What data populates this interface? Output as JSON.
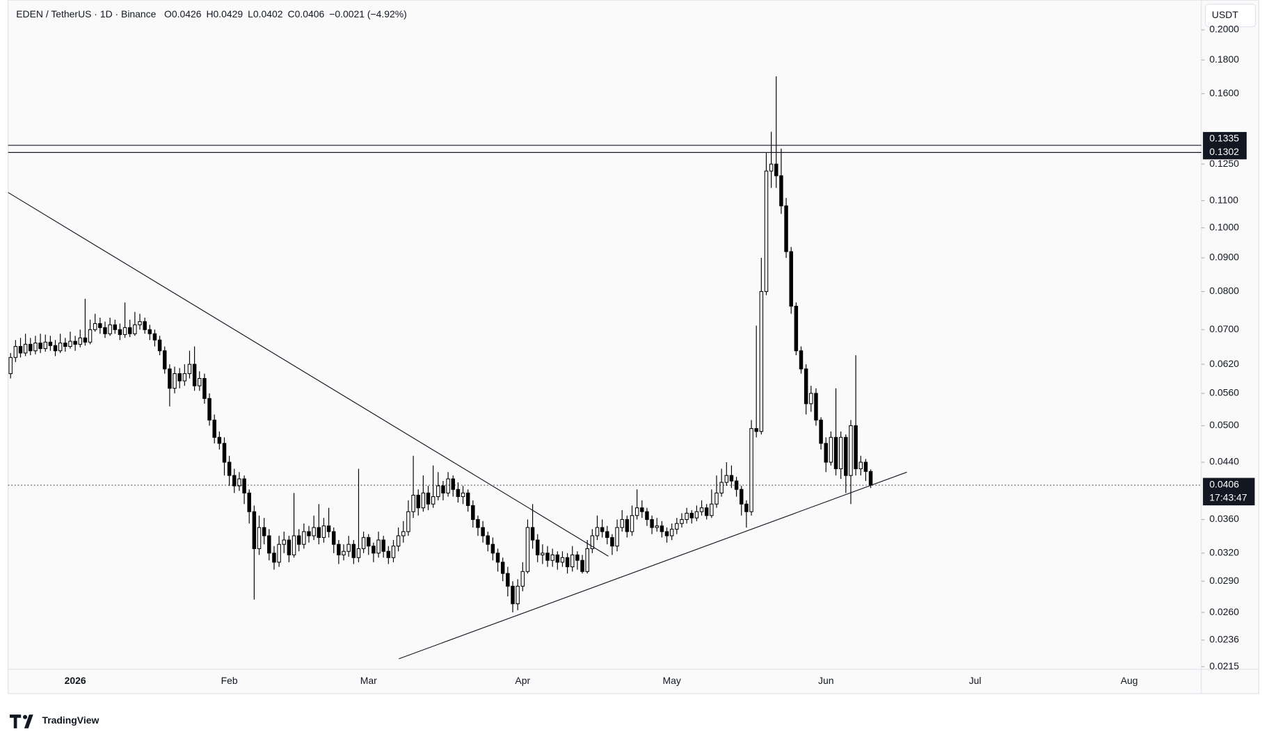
{
  "header": {
    "symbol": "EDEN / TetherUS · 1D · Binance",
    "open": "O0.0426",
    "high": "H0.0429",
    "low": "L0.0402",
    "close": "C0.0406",
    "change": "−0.0021 (−4.92%)"
  },
  "currency": "USDT",
  "brand": "TradingView",
  "chart_data": {
    "type": "candlestick",
    "log_scale": true,
    "grid": false,
    "up_color": "#ffffff",
    "down_color": "#000000",
    "ylim": [
      0.0213,
      0.222
    ],
    "yticks": [
      {
        "value": 0.2,
        "label": "0.2000"
      },
      {
        "value": 0.18,
        "label": "0.1800"
      },
      {
        "value": 0.16,
        "label": "0.1600"
      },
      {
        "value": 0.125,
        "label": "0.1250"
      },
      {
        "value": 0.11,
        "label": "0.1100"
      },
      {
        "value": 0.1,
        "label": "0.1000"
      },
      {
        "value": 0.09,
        "label": "0.0900"
      },
      {
        "value": 0.08,
        "label": "0.0800"
      },
      {
        "value": 0.07,
        "label": "0.0700"
      },
      {
        "value": 0.062,
        "label": "0.0620"
      },
      {
        "value": 0.056,
        "label": "0.0560"
      },
      {
        "value": 0.05,
        "label": "0.0500"
      },
      {
        "value": 0.044,
        "label": "0.0440"
      },
      {
        "value": 0.036,
        "label": "0.0360"
      },
      {
        "value": 0.032,
        "label": "0.0320"
      },
      {
        "value": 0.029,
        "label": "0.0290"
      },
      {
        "value": 0.026,
        "label": "0.0260"
      },
      {
        "value": 0.0236,
        "label": "0.0236"
      },
      {
        "value": 0.0215,
        "label": "0.0215"
      }
    ],
    "hlines": [
      0.1335,
      0.1302
    ],
    "countdown": "17:43:47",
    "categories": [
      null,
      null,
      null,
      null,
      null,
      null,
      null,
      null,
      null,
      null,
      null,
      null,
      null,
      "2026",
      null,
      null,
      null,
      null,
      null,
      null,
      null,
      null,
      null,
      null,
      null,
      null,
      null,
      null,
      null,
      null,
      null,
      null,
      null,
      null,
      null,
      null,
      null,
      null,
      null,
      null,
      null,
      null,
      null,
      null,
      "Feb",
      null,
      null,
      null,
      null,
      null,
      null,
      null,
      null,
      null,
      null,
      null,
      null,
      null,
      null,
      null,
      null,
      null,
      null,
      null,
      null,
      null,
      null,
      null,
      null,
      null,
      null,
      null,
      "Mar",
      null,
      null,
      null,
      null,
      null,
      null,
      null,
      null,
      null,
      null,
      null,
      null,
      null,
      null,
      null,
      null,
      null,
      null,
      null,
      null,
      null,
      null,
      null,
      null,
      null,
      null,
      null,
      null,
      null,
      null,
      "Apr",
      null,
      null,
      null,
      null,
      null,
      null,
      null,
      null,
      null,
      null,
      null,
      null,
      null,
      null,
      null,
      null,
      null,
      null,
      null,
      null,
      null,
      null,
      null,
      null,
      null,
      null,
      null,
      null,
      null,
      "May",
      null,
      null,
      null,
      null,
      null,
      null,
      null,
      null,
      null,
      null,
      null,
      null,
      null,
      null,
      null,
      null,
      null,
      null,
      null,
      null,
      null,
      null,
      null,
      null,
      null,
      null,
      null,
      null,
      null,
      null,
      "Jun",
      null,
      null,
      null,
      null,
      null,
      null,
      null,
      null,
      null,
      null,
      null,
      null,
      null,
      null,
      null,
      null,
      null,
      null,
      null,
      null,
      null,
      null,
      null,
      null,
      null,
      null,
      null,
      null,
      null,
      "Jul",
      null,
      null,
      null,
      null,
      null,
      null,
      null,
      null,
      null,
      null,
      null,
      null,
      null,
      null,
      null,
      null,
      null,
      null,
      null,
      null,
      null,
      null,
      null,
      null,
      null,
      null,
      null,
      null,
      null,
      null,
      "Aug",
      null,
      null,
      null,
      null,
      null,
      null,
      null,
      null,
      null,
      null,
      null,
      null,
      null,
      null
    ],
    "open": [
      0.06,
      0.0635,
      0.066,
      0.0645,
      0.0665,
      0.065,
      0.0668,
      0.0655,
      0.067,
      0.0662,
      0.065,
      0.0668,
      0.066,
      0.0672,
      0.0665,
      0.068,
      0.067,
      0.07,
      0.0715,
      0.0705,
      0.069,
      0.0712,
      0.07,
      0.0688,
      0.0705,
      0.069,
      0.0712,
      0.072,
      0.07,
      0.069,
      0.0675,
      0.065,
      0.061,
      0.057,
      0.06,
      0.0585,
      0.06,
      0.062,
      0.0575,
      0.059,
      0.055,
      0.051,
      0.048,
      0.047,
      0.044,
      0.042,
      0.0405,
      0.0415,
      0.0395,
      0.037,
      0.0325,
      0.035,
      0.034,
      0.032,
      0.031,
      0.033,
      0.0335,
      0.0318,
      0.034,
      0.033,
      0.0345,
      0.034,
      0.035,
      0.0338,
      0.0352,
      0.0345,
      0.033,
      0.0318,
      0.0322,
      0.033,
      0.0315,
      0.0325,
      0.0338,
      0.0328,
      0.032,
      0.0335,
      0.0322,
      0.0315,
      0.0328,
      0.034,
      0.0345,
      0.037,
      0.0392,
      0.0375,
      0.0395,
      0.038,
      0.039,
      0.0405,
      0.0395,
      0.0415,
      0.04,
      0.039,
      0.0395,
      0.0378,
      0.036,
      0.035,
      0.034,
      0.033,
      0.032,
      0.031,
      0.0298,
      0.0285,
      0.0268,
      0.0285,
      0.03,
      0.035,
      0.0335,
      0.0318,
      0.032,
      0.0312,
      0.0318,
      0.031,
      0.0315,
      0.0305,
      0.0318,
      0.0312,
      0.03,
      0.0325,
      0.034,
      0.035,
      0.0345,
      0.0338,
      0.0328,
      0.035,
      0.036,
      0.0345,
      0.0365,
      0.0375,
      0.037,
      0.036,
      0.035,
      0.0352,
      0.0345,
      0.034,
      0.0348,
      0.0355,
      0.036,
      0.0368,
      0.0362,
      0.037,
      0.0375,
      0.0365,
      0.038,
      0.0395,
      0.041,
      0.042,
      0.0412,
      0.04,
      0.038,
      0.037,
      0.0495,
      0.049,
      0.08,
      0.122,
      0.125,
      0.12,
      0.108,
      0.092,
      0.076,
      0.065,
      0.061,
      0.054,
      0.056,
      0.051,
      0.047,
      0.044,
      0.048,
      0.043,
      0.048,
      0.042,
      0.05,
      0.043,
      0.044,
      0.0426,
      null,
      null,
      null,
      null,
      null,
      null,
      null,
      null,
      null,
      null,
      null,
      null,
      null,
      null,
      null,
      null,
      null,
      null,
      null,
      null,
      null,
      null,
      null,
      null,
      null,
      null,
      null,
      null,
      null,
      null,
      null,
      null,
      null,
      null,
      null,
      null,
      null,
      null,
      null,
      null,
      null,
      null,
      null,
      null,
      null,
      null,
      null,
      null,
      null,
      null,
      null,
      null,
      null,
      null,
      null,
      null,
      null,
      null,
      null,
      null,
      null,
      null,
      null,
      null,
      null,
      null
    ],
    "high": [
      0.0645,
      0.0675,
      0.068,
      0.069,
      0.068,
      0.0685,
      0.069,
      0.0688,
      0.0685,
      0.0675,
      0.069,
      0.068,
      0.0695,
      0.0685,
      0.07,
      0.078,
      0.0725,
      0.074,
      0.073,
      0.072,
      0.073,
      0.0725,
      0.0715,
      0.077,
      0.0725,
      0.0745,
      0.074,
      0.073,
      0.0712,
      0.07,
      0.0685,
      0.066,
      0.062,
      0.0615,
      0.0612,
      0.062,
      0.065,
      0.066,
      0.0605,
      0.06,
      0.056,
      0.052,
      0.049,
      0.048,
      0.045,
      0.043,
      0.0425,
      0.042,
      0.04,
      0.0378,
      0.0365,
      0.0362,
      0.0348,
      0.0328,
      0.034,
      0.0345,
      0.034,
      0.0395,
      0.0348,
      0.0355,
      0.0352,
      0.0365,
      0.038,
      0.0362,
      0.0375,
      0.035,
      0.0335,
      0.033,
      0.034,
      0.0335,
      0.043,
      0.0345,
      0.0342,
      0.0332,
      0.0345,
      0.034,
      0.0328,
      0.0335,
      0.035,
      0.0358,
      0.0385,
      0.045,
      0.04,
      0.042,
      0.0405,
      0.0435,
      0.0425,
      0.0412,
      0.0425,
      0.042,
      0.041,
      0.0405,
      0.04,
      0.0385,
      0.0365,
      0.0358,
      0.0345,
      0.0338,
      0.0325,
      0.0315,
      0.0305,
      0.029,
      0.0292,
      0.031,
      0.036,
      0.038,
      0.0342,
      0.033,
      0.0328,
      0.0325,
      0.0322,
      0.0322,
      0.032,
      0.0328,
      0.0322,
      0.0318,
      0.0335,
      0.0348,
      0.0365,
      0.036,
      0.0352,
      0.0342,
      0.036,
      0.0372,
      0.0365,
      0.0378,
      0.04,
      0.0385,
      0.0375,
      0.0365,
      0.0362,
      0.0358,
      0.035,
      0.0355,
      0.0362,
      0.0368,
      0.0375,
      0.0372,
      0.0378,
      0.0385,
      0.038,
      0.04,
      0.042,
      0.043,
      0.044,
      0.0435,
      0.0418,
      0.0405,
      0.0385,
      0.051,
      0.071,
      0.09,
      0.13,
      0.14,
      0.17,
      0.132,
      0.111,
      0.0935,
      0.077,
      0.066,
      0.062,
      0.0575,
      0.057,
      0.0515,
      0.048,
      0.049,
      0.057,
      0.049,
      0.0485,
      0.051,
      0.064,
      0.045,
      0.0445,
      0.0429,
      null,
      null,
      null,
      null,
      null,
      null,
      null,
      null,
      null,
      null,
      null,
      null,
      null,
      null,
      null,
      null,
      null,
      null,
      null,
      null,
      null,
      null,
      null,
      null,
      null,
      null,
      null,
      null,
      null,
      null,
      null,
      null,
      null,
      null,
      null,
      null,
      null,
      null,
      null,
      null,
      null,
      null,
      null,
      null,
      null,
      null,
      null,
      null,
      null,
      null,
      null,
      null,
      null,
      null,
      null,
      null,
      null,
      null,
      null,
      null,
      null,
      null,
      null,
      null,
      null,
      null
    ],
    "low": [
      0.059,
      0.0625,
      0.0635,
      0.0638,
      0.064,
      0.0642,
      0.0645,
      0.0648,
      0.065,
      0.0638,
      0.0645,
      0.0648,
      0.0655,
      0.065,
      0.0658,
      0.0662,
      0.0665,
      0.0695,
      0.069,
      0.068,
      0.0685,
      0.069,
      0.0675,
      0.068,
      0.0682,
      0.0685,
      0.07,
      0.069,
      0.0675,
      0.066,
      0.064,
      0.06,
      0.0535,
      0.056,
      0.057,
      0.0575,
      0.059,
      0.0565,
      0.0565,
      0.054,
      0.05,
      0.047,
      0.046,
      0.042,
      0.0405,
      0.0395,
      0.0398,
      0.038,
      0.0355,
      0.0272,
      0.0318,
      0.033,
      0.0312,
      0.0302,
      0.0305,
      0.032,
      0.031,
      0.0315,
      0.0322,
      0.0325,
      0.0332,
      0.0335,
      0.033,
      0.0332,
      0.0338,
      0.032,
      0.0308,
      0.0312,
      0.0316,
      0.0308,
      0.031,
      0.032,
      0.0318,
      0.031,
      0.0315,
      0.0315,
      0.0308,
      0.031,
      0.0322,
      0.0332,
      0.034,
      0.0362,
      0.0365,
      0.037,
      0.0372,
      0.0375,
      0.0385,
      0.0385,
      0.039,
      0.039,
      0.0382,
      0.038,
      0.037,
      0.035,
      0.034,
      0.0332,
      0.0322,
      0.0312,
      0.03,
      0.029,
      0.0275,
      0.026,
      0.0262,
      0.028,
      0.0298,
      0.0325,
      0.031,
      0.0308,
      0.0305,
      0.0305,
      0.0302,
      0.0305,
      0.0298,
      0.03,
      0.0302,
      0.0298,
      0.0298,
      0.032,
      0.0335,
      0.0338,
      0.033,
      0.0318,
      0.0322,
      0.0345,
      0.0338,
      0.034,
      0.036,
      0.0362,
      0.0352,
      0.0342,
      0.0345,
      0.0338,
      0.0332,
      0.0335,
      0.0342,
      0.035,
      0.0355,
      0.0355,
      0.0358,
      0.0365,
      0.036,
      0.0362,
      0.0375,
      0.039,
      0.0405,
      0.0402,
      0.039,
      0.0365,
      0.035,
      0.0365,
      0.048,
      0.0485,
      0.079,
      0.115,
      0.115,
      0.105,
      0.09,
      0.074,
      0.064,
      0.06,
      0.052,
      0.0525,
      0.05,
      0.046,
      0.0425,
      0.0435,
      0.042,
      0.0415,
      0.0395,
      0.038,
      0.042,
      0.042,
      0.0412,
      0.0402,
      null,
      null,
      null,
      null,
      null,
      null,
      null,
      null,
      null,
      null,
      null,
      null,
      null,
      null,
      null,
      null,
      null,
      null,
      null,
      null,
      null,
      null,
      null,
      null,
      null,
      null,
      null,
      null,
      null,
      null,
      null,
      null,
      null,
      null,
      null,
      null,
      null,
      null,
      null,
      null,
      null,
      null,
      null,
      null,
      null,
      null,
      null,
      null,
      null,
      null,
      null,
      null,
      null,
      null,
      null,
      null,
      null,
      null,
      null,
      null,
      null,
      null,
      null,
      null,
      null,
      null
    ],
    "close": [
      0.0635,
      0.066,
      0.0645,
      0.0665,
      0.065,
      0.0668,
      0.0655,
      0.067,
      0.0662,
      0.065,
      0.0668,
      0.066,
      0.0672,
      0.0665,
      0.068,
      0.067,
      0.07,
      0.0715,
      0.0705,
      0.069,
      0.0712,
      0.07,
      0.0688,
      0.0705,
      0.069,
      0.0712,
      0.072,
      0.07,
      0.069,
      0.0675,
      0.065,
      0.061,
      0.057,
      0.06,
      0.0585,
      0.06,
      0.062,
      0.0575,
      0.059,
      0.055,
      0.051,
      0.048,
      0.047,
      0.044,
      0.042,
      0.0405,
      0.0415,
      0.0395,
      0.037,
      0.0325,
      0.035,
      0.034,
      0.032,
      0.031,
      0.033,
      0.0335,
      0.0318,
      0.034,
      0.033,
      0.0345,
      0.034,
      0.035,
      0.0338,
      0.0352,
      0.0345,
      0.033,
      0.0318,
      0.0322,
      0.033,
      0.0315,
      0.0325,
      0.0338,
      0.0328,
      0.032,
      0.0335,
      0.0322,
      0.0315,
      0.0328,
      0.034,
      0.0345,
      0.037,
      0.0392,
      0.0375,
      0.0395,
      0.038,
      0.039,
      0.0405,
      0.0395,
      0.0415,
      0.04,
      0.039,
      0.0395,
      0.0378,
      0.036,
      0.035,
      0.034,
      0.033,
      0.032,
      0.031,
      0.0298,
      0.0285,
      0.0268,
      0.0285,
      0.03,
      0.035,
      0.0335,
      0.0318,
      0.032,
      0.0312,
      0.0318,
      0.031,
      0.0315,
      0.0305,
      0.0318,
      0.0312,
      0.03,
      0.0325,
      0.034,
      0.035,
      0.0345,
      0.0338,
      0.0328,
      0.035,
      0.036,
      0.0345,
      0.0365,
      0.0375,
      0.037,
      0.036,
      0.035,
      0.0352,
      0.0345,
      0.034,
      0.0348,
      0.0355,
      0.036,
      0.0368,
      0.0362,
      0.037,
      0.0375,
      0.0365,
      0.038,
      0.0395,
      0.041,
      0.042,
      0.0412,
      0.04,
      0.038,
      0.037,
      0.0495,
      0.049,
      0.08,
      0.122,
      0.125,
      0.12,
      0.108,
      0.092,
      0.076,
      0.065,
      0.061,
      0.054,
      0.056,
      0.051,
      0.047,
      0.044,
      0.048,
      0.043,
      0.048,
      0.042,
      0.05,
      0.043,
      0.044,
      0.0426,
      0.0406,
      null,
      null,
      null,
      null,
      null,
      null,
      null,
      null,
      null,
      null,
      null,
      null,
      null,
      null,
      null,
      null,
      null,
      null,
      null,
      null,
      null,
      null,
      null,
      null,
      null,
      null,
      null,
      null,
      null,
      null,
      null,
      null,
      null,
      null,
      null,
      null,
      null,
      null,
      null,
      null,
      null,
      null,
      null,
      null,
      null,
      null,
      null,
      null,
      null,
      null,
      null,
      null,
      null,
      null,
      null,
      null,
      null,
      null,
      null,
      null,
      null,
      null,
      null,
      null,
      null,
      null
    ]
  }
}
